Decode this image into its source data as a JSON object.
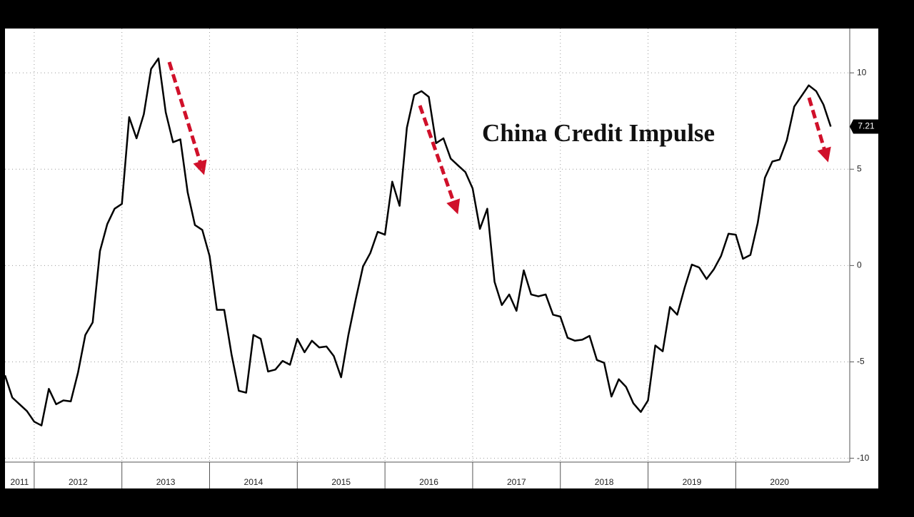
{
  "chart_data": {
    "type": "line",
    "title": "China Credit Impulse",
    "x": [
      2011.667,
      2011.75,
      2011.833,
      2011.917,
      2012,
      2012.083,
      2012.167,
      2012.25,
      2012.333,
      2012.417,
      2012.5,
      2012.583,
      2012.667,
      2012.75,
      2012.833,
      2012.917,
      2013,
      2013.083,
      2013.167,
      2013.25,
      2013.333,
      2013.417,
      2013.5,
      2013.583,
      2013.667,
      2013.75,
      2013.833,
      2013.917,
      2014,
      2014.083,
      2014.167,
      2014.25,
      2014.333,
      2014.417,
      2014.5,
      2014.583,
      2014.667,
      2014.75,
      2014.833,
      2014.917,
      2015,
      2015.083,
      2015.167,
      2015.25,
      2015.333,
      2015.417,
      2015.5,
      2015.583,
      2015.667,
      2015.75,
      2015.833,
      2015.917,
      2016,
      2016.083,
      2016.167,
      2016.25,
      2016.333,
      2016.417,
      2016.5,
      2016.583,
      2016.667,
      2016.75,
      2016.833,
      2016.917,
      2017,
      2017.083,
      2017.167,
      2017.25,
      2017.333,
      2017.417,
      2017.5,
      2017.583,
      2017.667,
      2017.75,
      2017.833,
      2017.917,
      2018,
      2018.083,
      2018.167,
      2018.25,
      2018.333,
      2018.417,
      2018.5,
      2018.583,
      2018.667,
      2018.75,
      2018.833,
      2018.917,
      2019,
      2019.083,
      2019.167,
      2019.25,
      2019.333,
      2019.417,
      2019.5,
      2019.583,
      2019.667,
      2019.75,
      2019.833,
      2019.917,
      2020,
      2020.083,
      2020.167,
      2020.25,
      2020.333,
      2020.417,
      2020.5,
      2020.583,
      2020.667,
      2020.75,
      2020.833,
      2020.917,
      2021,
      2021.083
    ],
    "values": [
      -5.7,
      -6.85,
      -7.2,
      -7.55,
      -8.1,
      -8.3,
      -6.4,
      -7.2,
      -7.0,
      -7.05,
      -5.55,
      -3.6,
      -2.95,
      0.75,
      2.15,
      2.95,
      3.2,
      7.7,
      6.6,
      7.85,
      10.2,
      10.75,
      7.95,
      6.4,
      6.55,
      3.8,
      2.1,
      1.85,
      0.5,
      -2.3,
      -2.3,
      -4.6,
      -6.5,
      -6.6,
      -3.6,
      -3.8,
      -5.5,
      -5.4,
      -4.95,
      -5.15,
      -3.8,
      -4.5,
      -3.9,
      -4.25,
      -4.2,
      -4.7,
      -5.8,
      -3.6,
      -1.75,
      -0.05,
      0.65,
      1.75,
      1.6,
      4.35,
      3.1,
      7.15,
      8.85,
      9.05,
      8.75,
      6.35,
      6.6,
      5.55,
      5.2,
      4.85,
      4.0,
      1.9,
      2.95,
      -0.85,
      -2.05,
      -1.5,
      -2.35,
      -0.25,
      -1.5,
      -1.6,
      -1.5,
      -2.55,
      -2.65,
      -3.75,
      -3.9,
      -3.85,
      -3.65,
      -4.9,
      -5.05,
      -6.8,
      -5.9,
      -6.3,
      -7.15,
      -7.6,
      -7.0,
      -4.15,
      -4.45,
      -2.15,
      -2.55,
      -1.15,
      0.05,
      -0.1,
      -0.7,
      -0.2,
      0.5,
      1.65,
      1.6,
      0.35,
      0.55,
      2.2,
      4.55,
      5.4,
      5.5,
      6.5,
      8.25,
      8.8,
      9.35,
      9.05,
      8.35,
      7.21
    ],
    "color": "#000000",
    "xlim": [
      2011.667,
      2021.3
    ],
    "xticks": [
      2011,
      2012,
      2013,
      2014,
      2015,
      2016,
      2017,
      2018,
      2019,
      2020
    ],
    "ylim": [
      -10.2,
      12.3
    ],
    "yticks": [
      -10,
      -5,
      0,
      5,
      10
    ],
    "grid": true
  }
}
